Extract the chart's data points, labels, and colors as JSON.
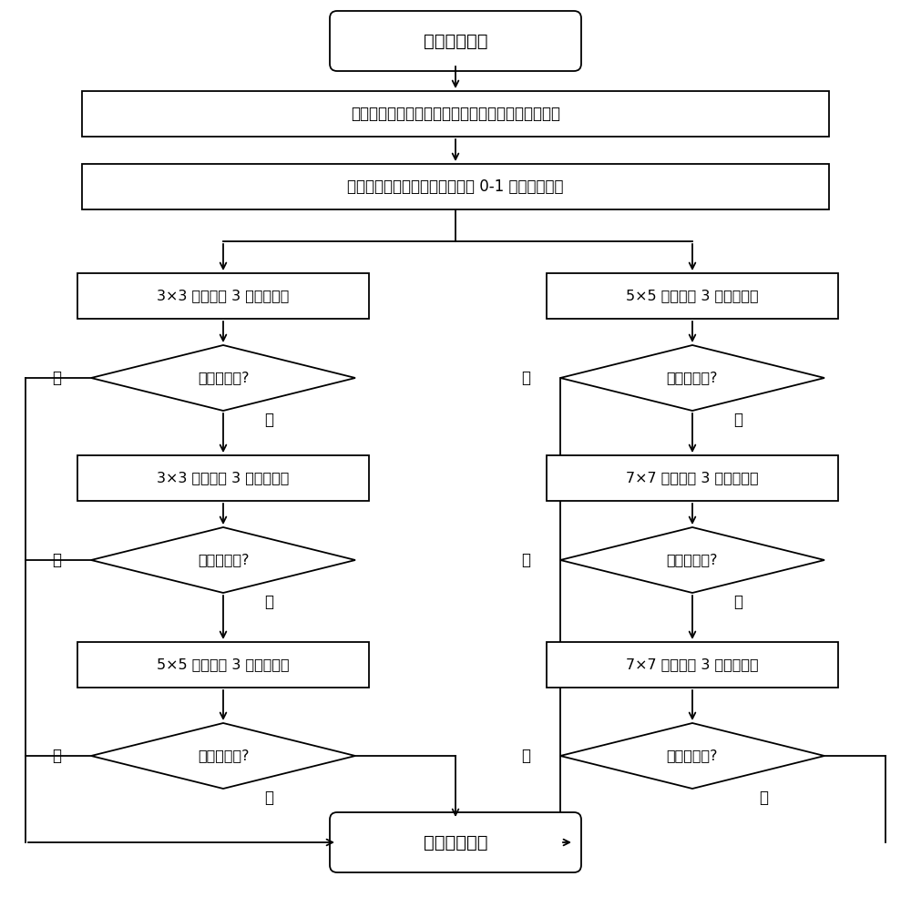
{
  "bg_color": "#ffffff",
  "line_color": "#000000",
  "text_color": "#000000",
  "box_fill": "#ffffff",
  "lw": 1.3,
  "start_text": "输入噪声图像",
  "step1_text": "采用子块排序差分最大法和投票法获得噪声上下边界",
  "step2_text": "用上下边界判断噪声点，获噪声 0-1 二值映射矩阵",
  "end_text": "输出去噪图像",
  "L_box1_text": "3×3 正十字窗 3 次均值滤波",
  "L_dia1_text": "噪声处理完?",
  "L_box2_text": "3×3 斜十字窗 3 次均值滤波",
  "L_dia2_text": "噪声处理完?",
  "L_box3_text": "5×5 正十字窗 3 次均值滤波",
  "L_dia3_text": "噪声处理完?",
  "R_box1_text": "5×5 斜十字窗 3 次均值滤波",
  "R_dia1_text": "噪声处理完?",
  "R_box2_text": "7×7 正十字窗 3 次均值滤波",
  "R_dia2_text": "噪声处理完?",
  "R_box3_text": "7×7 斜十字窗 3 次均值滤波",
  "R_dia3_text": "噪声处理完?",
  "yes_text": "是",
  "no_text": "否"
}
